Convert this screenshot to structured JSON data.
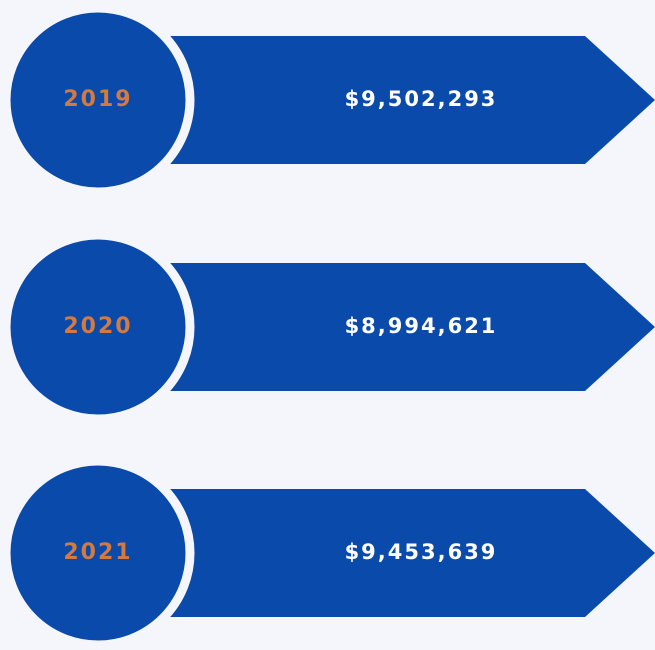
{
  "items": [
    {
      "year": "2019",
      "amount": "$9,502,293"
    },
    {
      "year": "2020",
      "amount": "$8,994,621"
    },
    {
      "year": "2021",
      "amount": "$9,453,639"
    }
  ]
}
